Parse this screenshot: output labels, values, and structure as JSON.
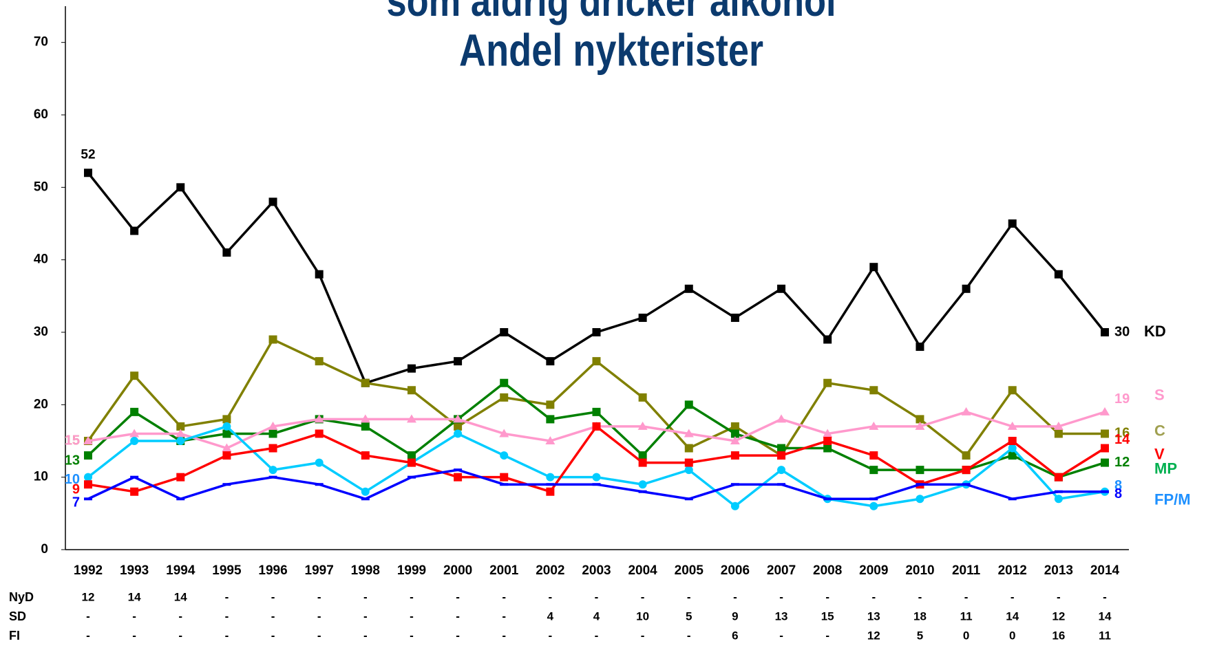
{
  "chart_data": {
    "type": "line",
    "title": [
      "som aldrig dricker alkohol",
      "Andel nykterister"
    ],
    "categories": [
      "1992",
      "1993",
      "1994",
      "1995",
      "1996",
      "1997",
      "1998",
      "1999",
      "2000",
      "2001",
      "2002",
      "2003",
      "2004",
      "2005",
      "2006",
      "2007",
      "2008",
      "2009",
      "2010",
      "2011",
      "2012",
      "2013",
      "2014"
    ],
    "ylim": [
      0,
      75
    ],
    "yticks": [
      0,
      10,
      20,
      30,
      40,
      50,
      60,
      70
    ],
    "grid": false,
    "series": [
      {
        "name": "KD",
        "color": "#000000",
        "marker": "square",
        "values": [
          52,
          44,
          50,
          41,
          48,
          38,
          23,
          25,
          26,
          30,
          26,
          30,
          32,
          36,
          32,
          36,
          29,
          39,
          28,
          36,
          45,
          38,
          30
        ]
      },
      {
        "name": "C",
        "color": "#808000",
        "marker": "square",
        "values": [
          15,
          24,
          17,
          18,
          29,
          26,
          23,
          22,
          17,
          21,
          20,
          26,
          21,
          14,
          17,
          13,
          23,
          22,
          18,
          13,
          22,
          16,
          16
        ]
      },
      {
        "name": "MP",
        "color": "#008000",
        "marker": "square",
        "values": [
          13,
          19,
          15,
          16,
          16,
          18,
          17,
          13,
          18,
          23,
          18,
          19,
          13,
          20,
          16,
          14,
          14,
          11,
          11,
          11,
          13,
          10,
          12
        ]
      },
      {
        "name": "S",
        "color": "#ff99cc",
        "marker": "triangle",
        "values": [
          15,
          16,
          16,
          14,
          17,
          18,
          18,
          18,
          18,
          16,
          15,
          17,
          17,
          16,
          15,
          18,
          16,
          17,
          17,
          19,
          17,
          17,
          19
        ]
      },
      {
        "name": "FP/M",
        "color": "#00ccff",
        "marker": "circle",
        "values": [
          10,
          15,
          15,
          17,
          11,
          12,
          8,
          12,
          16,
          13,
          10,
          10,
          9,
          11,
          6,
          11,
          7,
          6,
          7,
          9,
          14,
          7,
          8
        ]
      },
      {
        "name": "V",
        "color": "#ff0000",
        "marker": "square",
        "values": [
          9,
          8,
          10,
          13,
          14,
          16,
          13,
          12,
          10,
          10,
          8,
          17,
          12,
          12,
          13,
          13,
          15,
          13,
          9,
          11,
          15,
          10,
          14
        ]
      },
      {
        "color": "#0000ff",
        "marker": "dash",
        "values": [
          7,
          10,
          7,
          9,
          10,
          9,
          7,
          10,
          11,
          9,
          9,
          9,
          8,
          7,
          9,
          9,
          7,
          7,
          9,
          9,
          7,
          8,
          8
        ]
      }
    ],
    "table": [
      {
        "label": "NyD",
        "values": [
          12,
          14,
          14,
          "-",
          "-",
          "-",
          "-",
          "-",
          "-",
          "-",
          "-",
          "-",
          "-",
          "-",
          "-",
          "-",
          "-",
          "-",
          "-",
          "-",
          "-",
          "-",
          "-"
        ]
      },
      {
        "label": "SD",
        "values": [
          "-",
          "-",
          "-",
          "-",
          "-",
          "-",
          "-",
          "-",
          "-",
          "-",
          4,
          4,
          10,
          5,
          9,
          13,
          15,
          13,
          18,
          11,
          14,
          12,
          14
        ]
      },
      {
        "label": "FI",
        "values": [
          "-",
          "-",
          "-",
          "-",
          "-",
          "-",
          "-",
          "-",
          "-",
          "-",
          "-",
          "-",
          "-",
          "-",
          6,
          "-",
          "-",
          12,
          5,
          0,
          0,
          16,
          11
        ]
      }
    ]
  }
}
